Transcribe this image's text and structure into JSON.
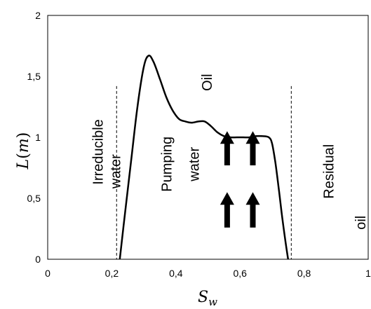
{
  "chart_data": {
    "type": "line",
    "title": "",
    "xlabel": {
      "main": "S",
      "sub": "w"
    },
    "ylabel": {
      "main": "L",
      "open": "(",
      "unit": "m",
      "close": ")"
    },
    "xlim": [
      0,
      1
    ],
    "ylim": [
      0,
      2
    ],
    "x_ticks": [
      "0",
      "0,2",
      "0,4",
      "0,6",
      "0,8",
      "1"
    ],
    "y_ticks": [
      "0",
      "0,5",
      "1",
      "1,5",
      "2"
    ],
    "grid": false,
    "series": [
      {
        "x": [
          0.225,
          0.24,
          0.26,
          0.28,
          0.3,
          0.315,
          0.33,
          0.35,
          0.37,
          0.39,
          0.41,
          0.43,
          0.45,
          0.47,
          0.49,
          0.51,
          0.53,
          0.55,
          0.57,
          0.59,
          0.61,
          0.63,
          0.65,
          0.67,
          0.69,
          0.7,
          0.71,
          0.72,
          0.73,
          0.74,
          0.75
        ],
        "y": [
          0.0,
          0.35,
          0.8,
          1.25,
          1.58,
          1.67,
          1.62,
          1.48,
          1.33,
          1.22,
          1.15,
          1.13,
          1.12,
          1.13,
          1.13,
          1.09,
          1.04,
          1.01,
          1.0,
          1.0,
          1.0,
          1.0,
          1.01,
          1.01,
          1.0,
          0.95,
          0.8,
          0.6,
          0.38,
          0.18,
          0.0
        ]
      }
    ],
    "boundary_lines": [
      {
        "x": 0.215,
        "y_top": 1.42
      },
      {
        "x": 0.76,
        "y_top": 1.42
      }
    ],
    "annotations": [
      {
        "text": "Irreducible",
        "x": 0.16,
        "y": 0.88
      },
      {
        "text": "water",
        "x": 0.215,
        "y": 0.72
      },
      {
        "text": "Pumping",
        "x": 0.375,
        "y": 0.78
      },
      {
        "text": "water",
        "x": 0.46,
        "y": 0.78
      },
      {
        "text": "Oil",
        "x": 0.5,
        "y": 1.45
      },
      {
        "text": "Residual",
        "x": 0.88,
        "y": 0.72
      },
      {
        "text": "oil",
        "x": 0.98,
        "y": 0.3
      }
    ],
    "arrows": [
      {
        "x": 0.56,
        "y_base": 0.77,
        "y_tip": 1.05
      },
      {
        "x": 0.64,
        "y_base": 0.77,
        "y_tip": 1.05
      },
      {
        "x": 0.56,
        "y_base": 0.26,
        "y_tip": 0.55
      },
      {
        "x": 0.64,
        "y_base": 0.26,
        "y_tip": 0.55
      }
    ]
  }
}
